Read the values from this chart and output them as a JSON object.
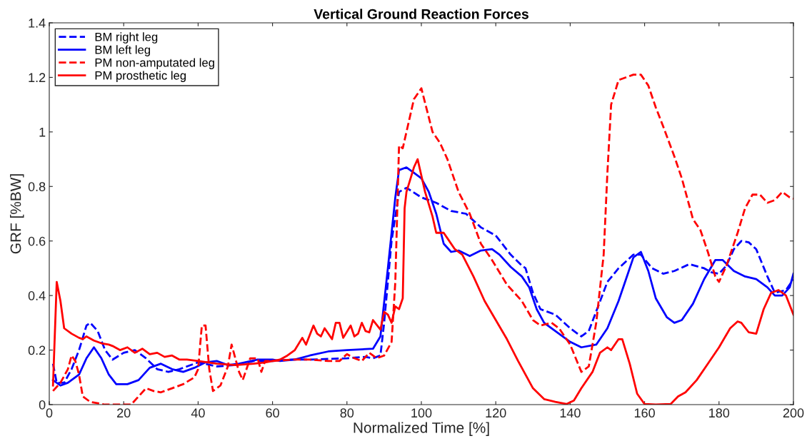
{
  "chart_data": {
    "type": "line",
    "title": "Vertical Ground Reaction Forces",
    "xlabel": "Normalized Time [%]",
    "ylabel": "GRF [%BW]",
    "xlim": [
      0,
      200
    ],
    "ylim": [
      0,
      1.4
    ],
    "xticks": [
      0,
      20,
      40,
      60,
      80,
      100,
      120,
      140,
      160,
      180,
      200
    ],
    "yticks": [
      0,
      0.2,
      0.4,
      0.6,
      0.8,
      1,
      1.2,
      1.4
    ],
    "grid": false,
    "legend": "top left",
    "series": [
      {
        "name": "BM right leg",
        "color": "#0000ff",
        "line_style": "dashed",
        "x": [
          1,
          2,
          4,
          6,
          8,
          10,
          11,
          13,
          15,
          17,
          20,
          23,
          26,
          29,
          32,
          35,
          40,
          45,
          50,
          55,
          60,
          65,
          70,
          80,
          85,
          87,
          89,
          90,
          92,
          94,
          96,
          100,
          104,
          108,
          112,
          116,
          120,
          124,
          127,
          128,
          130,
          132,
          136,
          140,
          143,
          145,
          150,
          153,
          157,
          159,
          162,
          165,
          168,
          172,
          176,
          178,
          180,
          182,
          184,
          186,
          188,
          190,
          193,
          195,
          198,
          200
        ],
        "values": [
          0.15,
          0.08,
          0.08,
          0.13,
          0.2,
          0.29,
          0.3,
          0.27,
          0.2,
          0.165,
          0.19,
          0.2,
          0.17,
          0.13,
          0.12,
          0.13,
          0.155,
          0.14,
          0.145,
          0.16,
          0.16,
          0.165,
          0.165,
          0.17,
          0.175,
          0.17,
          0.18,
          0.3,
          0.6,
          0.78,
          0.795,
          0.76,
          0.74,
          0.71,
          0.7,
          0.65,
          0.62,
          0.55,
          0.51,
          0.5,
          0.41,
          0.35,
          0.33,
          0.28,
          0.25,
          0.27,
          0.45,
          0.5,
          0.55,
          0.55,
          0.5,
          0.48,
          0.49,
          0.515,
          0.5,
          0.485,
          0.48,
          0.51,
          0.57,
          0.6,
          0.595,
          0.57,
          0.47,
          0.41,
          0.42,
          0.46
        ]
      },
      {
        "name": "BM left leg",
        "color": "#0000ff",
        "line_style": "solid",
        "x": [
          1,
          3,
          5,
          8,
          10,
          12,
          14,
          16,
          18,
          21,
          24,
          27,
          30,
          33,
          36,
          39,
          42,
          45,
          48,
          51,
          56,
          60,
          62,
          66,
          70,
          75,
          80,
          87,
          89,
          91,
          93,
          94,
          96,
          98,
          100,
          102,
          104,
          106,
          108,
          110,
          113,
          116,
          119,
          121,
          124,
          127,
          129,
          131,
          133,
          136,
          140,
          143,
          147,
          150,
          153,
          155,
          157,
          159,
          161,
          163,
          166,
          168,
          170,
          173,
          176,
          179,
          181,
          184,
          187,
          190,
          193,
          195,
          197,
          199,
          200
        ],
        "values": [
          0.09,
          0.07,
          0.08,
          0.11,
          0.17,
          0.21,
          0.17,
          0.11,
          0.075,
          0.075,
          0.09,
          0.135,
          0.15,
          0.13,
          0.12,
          0.135,
          0.155,
          0.16,
          0.145,
          0.15,
          0.165,
          0.165,
          0.16,
          0.165,
          0.18,
          0.195,
          0.2,
          0.205,
          0.25,
          0.5,
          0.76,
          0.86,
          0.87,
          0.85,
          0.83,
          0.78,
          0.7,
          0.59,
          0.56,
          0.565,
          0.545,
          0.565,
          0.57,
          0.55,
          0.505,
          0.47,
          0.43,
          0.35,
          0.3,
          0.27,
          0.23,
          0.21,
          0.22,
          0.28,
          0.38,
          0.46,
          0.54,
          0.56,
          0.49,
          0.39,
          0.32,
          0.3,
          0.31,
          0.37,
          0.46,
          0.53,
          0.53,
          0.49,
          0.47,
          0.46,
          0.43,
          0.4,
          0.4,
          0.43,
          0.48
        ]
      },
      {
        "name": "PM non-amputated leg",
        "color": "#ff0000",
        "line_style": "dashed",
        "x": [
          1,
          3,
          5,
          6,
          7,
          8,
          9,
          11,
          15,
          22,
          24,
          26,
          28,
          30,
          33,
          36,
          39,
          40,
          41,
          42,
          43,
          44,
          46,
          48,
          49,
          51,
          52,
          54,
          56,
          57,
          58,
          60,
          65,
          70,
          75,
          78,
          80,
          82,
          84,
          86,
          88,
          90,
          92,
          93,
          94,
          95,
          98,
          100,
          103,
          105,
          107,
          110,
          113,
          116,
          119,
          123,
          127,
          130,
          132,
          135,
          137,
          140,
          143,
          145,
          147,
          149,
          150,
          151,
          153,
          157,
          159,
          161,
          163,
          165,
          168,
          170,
          173,
          175,
          177,
          179,
          180,
          182,
          185,
          187,
          189,
          191,
          193,
          195,
          197,
          199,
          200
        ],
        "values": [
          0.05,
          0.08,
          0.13,
          0.18,
          0.16,
          0.11,
          0.03,
          0.01,
          0.0,
          0.0,
          0.03,
          0.06,
          0.05,
          0.045,
          0.06,
          0.075,
          0.1,
          0.13,
          0.29,
          0.29,
          0.13,
          0.05,
          0.07,
          0.14,
          0.22,
          0.12,
          0.09,
          0.17,
          0.17,
          0.12,
          0.16,
          0.16,
          0.165,
          0.165,
          0.16,
          0.16,
          0.185,
          0.17,
          0.16,
          0.19,
          0.17,
          0.18,
          0.23,
          0.45,
          0.95,
          0.94,
          1.12,
          1.16,
          1.0,
          0.96,
          0.9,
          0.78,
          0.7,
          0.59,
          0.53,
          0.44,
          0.38,
          0.31,
          0.29,
          0.3,
          0.28,
          0.22,
          0.12,
          0.14,
          0.3,
          0.55,
          0.85,
          1.1,
          1.19,
          1.21,
          1.21,
          1.17,
          1.09,
          1.02,
          0.91,
          0.83,
          0.68,
          0.64,
          0.56,
          0.47,
          0.45,
          0.51,
          0.63,
          0.72,
          0.77,
          0.77,
          0.74,
          0.75,
          0.78,
          0.76,
          0.755
        ]
      },
      {
        "name": "PM prosthetic leg",
        "color": "#ff0000",
        "line_style": "solid",
        "x": [
          1,
          2,
          3,
          4,
          6,
          8,
          9,
          10,
          12,
          14,
          16,
          17,
          19,
          21,
          23,
          25,
          27,
          29,
          31,
          33,
          35,
          37,
          40,
          45,
          50,
          55,
          58,
          62,
          64,
          66,
          68,
          69,
          71,
          72,
          73,
          74,
          76,
          77,
          78,
          79,
          81,
          82,
          83,
          84,
          85,
          86,
          87,
          89,
          90,
          91,
          92,
          93,
          94,
          95,
          95.5,
          96,
          98,
          99,
          101,
          103,
          104,
          106,
          107,
          109,
          111,
          114,
          117,
          120,
          123,
          126,
          130,
          133,
          136,
          139,
          141,
          143,
          146,
          148,
          150,
          151,
          153,
          154,
          156,
          158,
          160,
          163,
          167,
          169,
          171,
          174,
          177,
          180,
          183,
          185,
          186,
          188,
          190,
          192,
          194,
          196,
          198,
          200
        ],
        "values": [
          0.07,
          0.45,
          0.38,
          0.28,
          0.26,
          0.245,
          0.24,
          0.25,
          0.235,
          0.225,
          0.22,
          0.215,
          0.2,
          0.21,
          0.19,
          0.205,
          0.185,
          0.19,
          0.175,
          0.18,
          0.165,
          0.165,
          0.16,
          0.15,
          0.145,
          0.15,
          0.155,
          0.165,
          0.18,
          0.2,
          0.245,
          0.22,
          0.29,
          0.26,
          0.25,
          0.28,
          0.24,
          0.3,
          0.3,
          0.245,
          0.29,
          0.25,
          0.26,
          0.3,
          0.27,
          0.265,
          0.31,
          0.275,
          0.34,
          0.33,
          0.3,
          0.36,
          0.35,
          0.39,
          0.72,
          0.78,
          0.87,
          0.9,
          0.78,
          0.69,
          0.63,
          0.63,
          0.61,
          0.57,
          0.55,
          0.47,
          0.38,
          0.31,
          0.24,
          0.16,
          0.06,
          0.02,
          0.01,
          0.002,
          0.015,
          0.06,
          0.12,
          0.19,
          0.21,
          0.2,
          0.24,
          0.24,
          0.15,
          0.04,
          0.002,
          0.0,
          0.002,
          0.03,
          0.045,
          0.09,
          0.15,
          0.21,
          0.28,
          0.305,
          0.3,
          0.265,
          0.26,
          0.35,
          0.41,
          0.42,
          0.4,
          0.33
        ]
      }
    ]
  }
}
